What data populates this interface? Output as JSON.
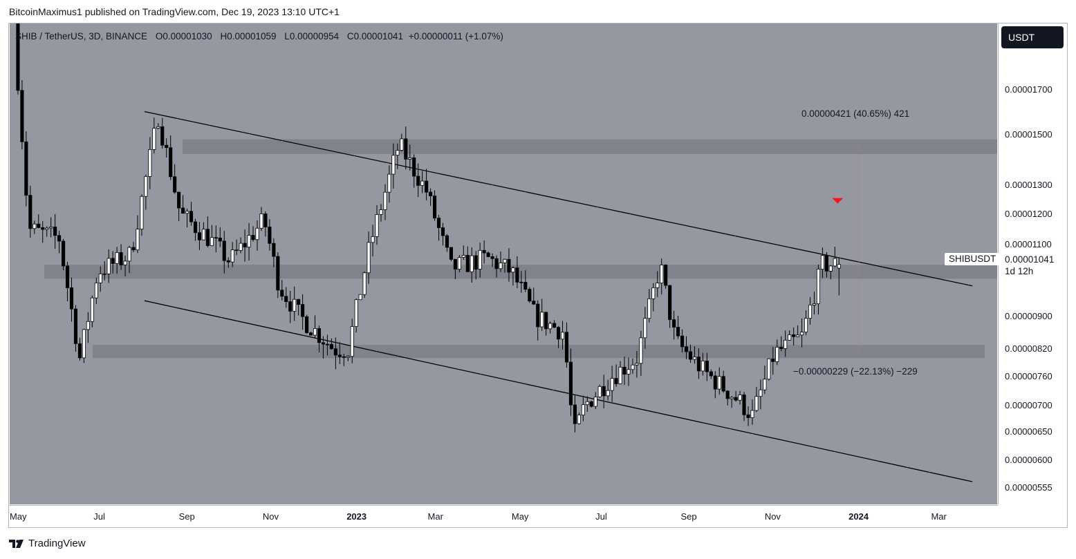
{
  "publication": {
    "text": "BitcoinMaximus1 published on TradingView.com, Dec 19, 2023 13:10 UTC+1"
  },
  "legend": {
    "symbol": "SHIB / TetherUS, 3D, BINANCE",
    "o_key": "O",
    "o_val": "0.00001030",
    "h_key": "H",
    "h_val": "0.00001059",
    "l_key": "L",
    "l_val": "0.00000954",
    "c_key": "C",
    "c_val": "0.00001041",
    "change": "+0.00000011 (+1.07%)"
  },
  "currency_button": "USDT",
  "symbol_label": "SHIBUSDT",
  "last_price": "0.00001041",
  "countdown": "1d 12h",
  "measures": {
    "up": "0.00000421 (40.65%) 421",
    "down": "−0.00000229 (−22.13%) −229"
  },
  "brand": "TradingView",
  "colors": {
    "background": "#9598a1",
    "zone": "#7c7f87",
    "candle_up": "#ffffff",
    "candle_down": "#000000",
    "signal_arrow": "#f7121e"
  },
  "chart_data": {
    "type": "candlestick",
    "title": "SHIB / TetherUS, 3D, BINANCE",
    "y_scale": "log",
    "y_ticks": [
      "0.00001700",
      "0.00001500",
      "0.00001300",
      "0.00001200",
      "0.00001100",
      "0.00000900",
      "0.00000820",
      "0.00000760",
      "0.00000700",
      "0.00000650",
      "0.00000600",
      "0.00000555"
    ],
    "x_ticks": [
      "May",
      "Jul",
      "Sep",
      "Nov",
      "2023",
      "Mar",
      "May",
      "Jul",
      "Sep",
      "Nov",
      "2024",
      "Mar"
    ],
    "x_range": [
      "2022-04-25",
      "2024-04-12"
    ],
    "y_range": [
      5.3e-06,
      2.05e-05
    ],
    "ohlc_anchors": [
      {
        "date": "2022-05-01",
        "price": 2.05e-05
      },
      {
        "date": "2022-05-12",
        "price": 1.15e-05
      },
      {
        "date": "2022-06-03",
        "price": 1.12e-05
      },
      {
        "date": "2022-06-18",
        "price": 8e-06
      },
      {
        "date": "2022-07-01",
        "price": 1.02e-05
      },
      {
        "date": "2022-07-25",
        "price": 1.07e-05
      },
      {
        "date": "2022-08-14",
        "price": 1.58e-05
      },
      {
        "date": "2022-08-30",
        "price": 1.2e-05
      },
      {
        "date": "2022-09-20",
        "price": 1.12e-05
      },
      {
        "date": "2022-10-05",
        "price": 1.05e-05
      },
      {
        "date": "2022-10-30",
        "price": 1.18e-05
      },
      {
        "date": "2022-11-10",
        "price": 9.8e-06
      },
      {
        "date": "2022-11-25",
        "price": 9e-06
      },
      {
        "date": "2022-12-20",
        "price": 8.2e-06
      },
      {
        "date": "2022-12-30",
        "price": 8.2e-06
      },
      {
        "date": "2023-01-15",
        "price": 1.1e-05
      },
      {
        "date": "2023-02-05",
        "price": 1.46e-05
      },
      {
        "date": "2023-02-25",
        "price": 1.28e-05
      },
      {
        "date": "2023-03-15",
        "price": 1.03e-05
      },
      {
        "date": "2023-04-10",
        "price": 1.06e-05
      },
      {
        "date": "2023-04-28",
        "price": 1.02e-05
      },
      {
        "date": "2023-05-15",
        "price": 9e-06
      },
      {
        "date": "2023-06-05",
        "price": 8.6e-06
      },
      {
        "date": "2023-06-12",
        "price": 6.4e-06
      },
      {
        "date": "2023-06-20",
        "price": 7e-06
      },
      {
        "date": "2023-07-10",
        "price": 7.6e-06
      },
      {
        "date": "2023-07-28",
        "price": 8e-06
      },
      {
        "date": "2023-08-14",
        "price": 1.04e-05
      },
      {
        "date": "2023-08-25",
        "price": 8.4e-06
      },
      {
        "date": "2023-09-15",
        "price": 7.7e-06
      },
      {
        "date": "2023-10-10",
        "price": 7.1e-06
      },
      {
        "date": "2023-10-20",
        "price": 6.8e-06
      },
      {
        "date": "2023-11-05",
        "price": 8.1e-06
      },
      {
        "date": "2023-11-25",
        "price": 8.5e-06
      },
      {
        "date": "2023-12-10",
        "price": 1.04e-05
      },
      {
        "date": "2023-12-19",
        "price": 1.041e-05
      }
    ],
    "last_candle": {
      "open": 1.03e-05,
      "high": 1.059e-05,
      "low": 9.54e-06,
      "close": 1.041e-05
    },
    "resistance_zones": [
      {
        "from": 1.42e-05,
        "to": 1.48e-05
      },
      {
        "from": 1e-05,
        "to": 1.04e-05
      },
      {
        "from": 8e-06,
        "to": 8.3e-06
      }
    ],
    "channel": {
      "upper": [
        {
          "date": "2022-08-01",
          "price": 1.6e-05
        },
        {
          "date": "2024-03-25",
          "price": 9.8e-06
        }
      ],
      "lower": [
        {
          "date": "2022-08-01",
          "price": 9.4e-06
        },
        {
          "date": "2024-03-25",
          "price": 5.65e-06
        }
      ]
    },
    "signal": {
      "type": "bearish-arrow",
      "date": "2023-12-18",
      "price": 1.24e-05
    },
    "measurements": [
      {
        "label": "0.00000421 (40.65%) 421",
        "value": 4.21e-06,
        "percent": 40.65
      },
      {
        "label": "−0.00000229 (−22.13%) −229",
        "value": -2.29e-06,
        "percent": -22.13
      }
    ]
  }
}
